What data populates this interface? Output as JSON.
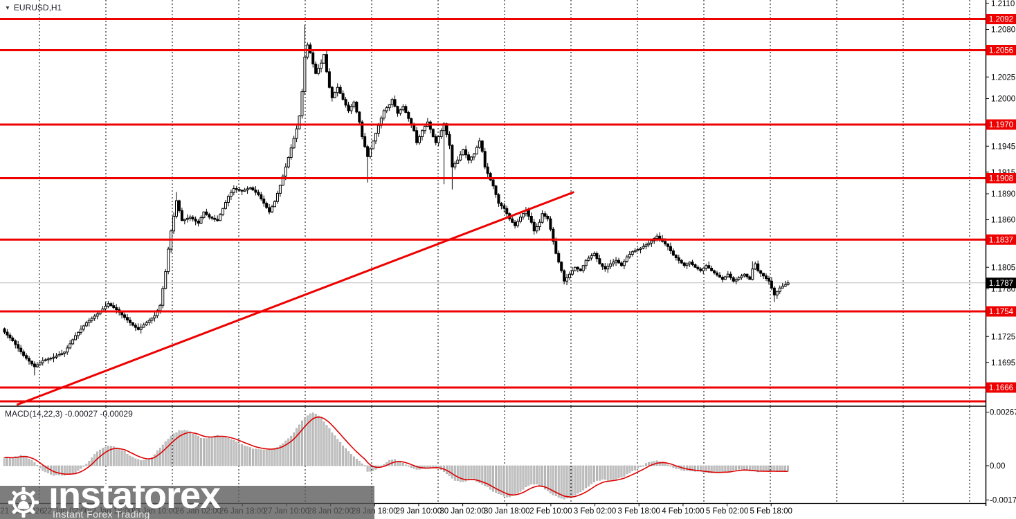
{
  "window": {
    "symbol_label": "EURUSD,H1"
  },
  "indicator_label": "MACD(14,22,3) -0.00027 -0.00029",
  "watermark": {
    "brand": "instaforex",
    "tagline": "Instant Forex Trading"
  },
  "colors": {
    "level_red": "#ee0000",
    "tag_red_bg": "#ee0000",
    "tag_text": "#ffffff",
    "current_tag_bg": "#000000",
    "signal_red": "#dd0000",
    "histogram_fill": "#c3c3c3",
    "histogram_edge": "#9d9d9d",
    "current_price_line": "#bbbbbb",
    "grid": "#000000",
    "candle_up_fill": "#ffffff",
    "candle_down_fill": "#000000",
    "candle_stroke": "#000000",
    "watermark_bg": "rgba(88,88,88,0.78)"
  },
  "price_axis": {
    "plain_ticks": [
      {
        "value": 1.211,
        "label": "1.2110"
      },
      {
        "value": 1.208,
        "label": "1.2080"
      },
      {
        "value": 1.2025,
        "label": "1.2025"
      },
      {
        "value": 1.2,
        "label": "1.2000"
      },
      {
        "value": 1.1945,
        "label": "1.1945"
      },
      {
        "value": 1.1915,
        "label": "1.1915"
      },
      {
        "value": 1.189,
        "label": "1.1890"
      },
      {
        "value": 1.186,
        "label": "1.1860"
      },
      {
        "value": 1.1805,
        "label": "1.1805"
      },
      {
        "value": 1.178,
        "label": "1.1780"
      },
      {
        "value": 1.1725,
        "label": "1.1725"
      },
      {
        "value": 1.1695,
        "label": "1.1695"
      }
    ],
    "current_tag": {
      "value": 1.1787,
      "label": "1.1787"
    }
  },
  "macd_axis": {
    "ticks": [
      {
        "value": 0.00267,
        "label": "0.00267"
      },
      {
        "value": 0,
        "label": "0.00"
      },
      {
        "value": -0.00171,
        "label": "-0.00171"
      }
    ]
  },
  "time_axis": {
    "labels": [
      "21 Jan 2026",
      "22 Jan 02:00",
      "22 Jan 18:00",
      "23 Jan 10:00",
      "26 Jan 02:00",
      "26 Jan 18:00",
      "27 Jan 10:00",
      "28 Jan 02:00",
      "28 Jan 18:00",
      "29 Jan 10:00",
      "30 Jan 02:00",
      "30 Jan 18:00",
      "2 Feb 10:00",
      "3 Feb 02:00",
      "3 Feb 18:00",
      "4 Feb 10:00",
      "5 Feb 02:00",
      "5 Feb 18:00"
    ]
  },
  "chart_data": {
    "type": "candlestick",
    "symbol": "EURUSD",
    "timeframe": "H1",
    "bars": 288,
    "price_levels": [
      {
        "price": 1.2092,
        "label": "1.2092"
      },
      {
        "price": 1.2056,
        "label": "1.2056"
      },
      {
        "price": 1.197,
        "label": "1.1970"
      },
      {
        "price": 1.1908,
        "label": "1.1908"
      },
      {
        "price": 1.1837,
        "label": "1.1837"
      },
      {
        "price": 1.1754,
        "label": "1.1754"
      },
      {
        "price": 1.1666,
        "label": "1.1666"
      },
      {
        "price": 1.165,
        "label": ""
      }
    ],
    "current_price": 1.1787,
    "trendline": {
      "start_index": 4.5,
      "start_price": 1.1646,
      "end_index": 208.6,
      "end_price": 1.1892
    },
    "candle_close_anchors": [
      [
        0,
        1.173
      ],
      [
        3,
        1.172
      ],
      [
        7,
        1.1703
      ],
      [
        11,
        1.169
      ],
      [
        14,
        1.1697
      ],
      [
        18,
        1.1701
      ],
      [
        22,
        1.1707
      ],
      [
        26,
        1.1726
      ],
      [
        30,
        1.1741
      ],
      [
        34,
        1.1751
      ],
      [
        38,
        1.1763
      ],
      [
        41,
        1.1756
      ],
      [
        44,
        1.1747
      ],
      [
        47,
        1.1738
      ],
      [
        49,
        1.1733
      ],
      [
        52,
        1.1741
      ],
      [
        55,
        1.1749
      ],
      [
        57,
        1.1761
      ],
      [
        59,
        1.18
      ],
      [
        60,
        1.1826
      ],
      [
        61,
        1.1847
      ],
      [
        62,
        1.1864
      ],
      [
        63,
        1.1882
      ],
      [
        65,
        1.1859
      ],
      [
        68,
        1.1863
      ],
      [
        71,
        1.1856
      ],
      [
        73,
        1.1869
      ],
      [
        75,
        1.1863
      ],
      [
        78,
        1.1859
      ],
      [
        80,
        1.1873
      ],
      [
        82,
        1.1887
      ],
      [
        84,
        1.1896
      ],
      [
        87,
        1.1893
      ],
      [
        90,
        1.1897
      ],
      [
        93,
        1.1889
      ],
      [
        95,
        1.1879
      ],
      [
        97,
        1.1869
      ],
      [
        99,
        1.1881
      ],
      [
        101,
        1.19
      ],
      [
        103,
        1.1921
      ],
      [
        105,
        1.1943
      ],
      [
        107,
        1.1965
      ],
      [
        108,
        1.198
      ],
      [
        109,
        1.2008
      ],
      [
        110,
        1.2048
      ],
      [
        111,
        1.2062
      ],
      [
        112,
        1.2053
      ],
      [
        113,
        1.204
      ],
      [
        114,
        1.2029
      ],
      [
        116,
        1.2041
      ],
      [
        117,
        1.2051
      ],
      [
        118,
        1.2031
      ],
      [
        119,
        1.2013
      ],
      [
        120,
        1.2001
      ],
      [
        122,
        1.2013
      ],
      [
        124,
        1.1999
      ],
      [
        126,
        1.1986
      ],
      [
        128,
        1.1996
      ],
      [
        130,
        1.1973
      ],
      [
        131,
        1.1956
      ],
      [
        133,
        1.1933
      ],
      [
        135,
        1.1951
      ],
      [
        137,
        1.1969
      ],
      [
        139,
        1.1986
      ],
      [
        141,
        1.1993
      ],
      [
        142,
        1.1999
      ],
      [
        144,
        1.1983
      ],
      [
        146,
        1.1991
      ],
      [
        148,
        1.1977
      ],
      [
        150,
        1.1963
      ],
      [
        151,
        1.1949
      ],
      [
        153,
        1.1963
      ],
      [
        155,
        1.1973
      ],
      [
        157,
        1.1956
      ],
      [
        158,
        1.1949
      ],
      [
        160,
        1.1963
      ],
      [
        161,
        1.1971
      ],
      [
        163,
        1.1946
      ],
      [
        164,
        1.1921
      ],
      [
        166,
        1.1929
      ],
      [
        168,
        1.1941
      ],
      [
        170,
        1.1929
      ],
      [
        172,
        1.1936
      ],
      [
        174,
        1.1951
      ],
      [
        175,
        1.1939
      ],
      [
        176,
        1.1921
      ],
      [
        178,
        1.1906
      ],
      [
        179,
        1.1899
      ],
      [
        181,
        1.1879
      ],
      [
        183,
        1.1873
      ],
      [
        185,
        1.1861
      ],
      [
        187,
        1.1853
      ],
      [
        189,
        1.1863
      ],
      [
        191,
        1.1871
      ],
      [
        193,
        1.1857
      ],
      [
        194,
        1.1847
      ],
      [
        196,
        1.1857
      ],
      [
        197,
        1.1867
      ],
      [
        199,
        1.1861
      ],
      [
        200,
        1.1849
      ],
      [
        202,
        1.1821
      ],
      [
        204,
        1.1801
      ],
      [
        205,
        1.1789
      ],
      [
        207,
        1.1797
      ],
      [
        209,
        1.1805
      ],
      [
        211,
        1.1801
      ],
      [
        213,
        1.1813
      ],
      [
        216,
        1.1821
      ],
      [
        218,
        1.1809
      ],
      [
        220,
        1.1803
      ],
      [
        222,
        1.1809
      ],
      [
        224,
        1.1813
      ],
      [
        226,
        1.1807
      ],
      [
        228,
        1.1817
      ],
      [
        230,
        1.1823
      ],
      [
        233,
        1.1827
      ],
      [
        236,
        1.1833
      ],
      [
        239,
        1.1841
      ],
      [
        241,
        1.1835
      ],
      [
        243,
        1.1829
      ],
      [
        245,
        1.1819
      ],
      [
        247,
        1.1813
      ],
      [
        249,
        1.1807
      ],
      [
        251,
        1.1811
      ],
      [
        253,
        1.1805
      ],
      [
        255,
        1.1801
      ],
      [
        257,
        1.1807
      ],
      [
        259,
        1.1801
      ],
      [
        261,
        1.1796
      ],
      [
        263,
        1.1791
      ],
      [
        265,
        1.1797
      ],
      [
        267,
        1.1789
      ],
      [
        269,
        1.1793
      ],
      [
        271,
        1.1797
      ],
      [
        273,
        1.1791
      ],
      [
        274,
        1.1803
      ],
      [
        275,
        1.1809
      ],
      [
        276,
        1.1801
      ],
      [
        278,
        1.1795
      ],
      [
        280,
        1.1789
      ],
      [
        281,
        1.1781
      ],
      [
        282,
        1.1773
      ],
      [
        284,
        1.1781
      ],
      [
        286,
        1.1785
      ],
      [
        287,
        1.1787
      ]
    ],
    "wick_extremes": [
      {
        "i": 11,
        "low": 1.168
      },
      {
        "i": 38,
        "high": 1.1766
      },
      {
        "i": 63,
        "high": 1.1892
      },
      {
        "i": 110,
        "high": 1.2085
      },
      {
        "i": 133,
        "low": 1.1903
      },
      {
        "i": 142,
        "high": 1.2001
      },
      {
        "i": 161,
        "low": 1.1901
      },
      {
        "i": 164,
        "low": 1.1895
      },
      {
        "i": 239,
        "high": 1.1843
      },
      {
        "i": 274,
        "high": 1.1812
      },
      {
        "i": 282,
        "low": 1.1765
      }
    ],
    "macd": {
      "params": "14,22,3",
      "last_main": -0.00027,
      "last_signal": -0.00029,
      "value_anchors": [
        [
          0,
          0.00042
        ],
        [
          3,
          0.0004
        ],
        [
          6,
          0.0005
        ],
        [
          8,
          0.00045
        ],
        [
          10,
          0.00025
        ],
        [
          12,
          2e-05
        ],
        [
          14,
          -0.00025
        ],
        [
          17,
          -0.00045
        ],
        [
          20,
          -0.00048
        ],
        [
          23,
          -0.00045
        ],
        [
          26,
          -0.00036
        ],
        [
          28,
          -0.00015
        ],
        [
          30,
          0.0001
        ],
        [
          32,
          0.0004
        ],
        [
          34,
          0.0007
        ],
        [
          36,
          0.0009
        ],
        [
          38,
          0.00098
        ],
        [
          40,
          0.00096
        ],
        [
          42,
          0.00085
        ],
        [
          44,
          0.0007
        ],
        [
          46,
          0.0005
        ],
        [
          48,
          0.00035
        ],
        [
          50,
          0.00028
        ],
        [
          52,
          0.00026
        ],
        [
          54,
          0.00042
        ],
        [
          56,
          0.00072
        ],
        [
          58,
          0.00105
        ],
        [
          60,
          0.00135
        ],
        [
          62,
          0.0016
        ],
        [
          64,
          0.00174
        ],
        [
          66,
          0.00177
        ],
        [
          68,
          0.00168
        ],
        [
          70,
          0.00152
        ],
        [
          72,
          0.00139
        ],
        [
          74,
          0.00136
        ],
        [
          76,
          0.00144
        ],
        [
          78,
          0.00149
        ],
        [
          80,
          0.00147
        ],
        [
          82,
          0.00138
        ],
        [
          84,
          0.00125
        ],
        [
          86,
          0.00111
        ],
        [
          88,
          0.00099
        ],
        [
          90,
          0.0009
        ],
        [
          92,
          0.00082
        ],
        [
          94,
          0.00078
        ],
        [
          96,
          0.00077
        ],
        [
          98,
          0.00081
        ],
        [
          100,
          0.00092
        ],
        [
          102,
          0.0011
        ],
        [
          104,
          0.00134
        ],
        [
          106,
          0.00166
        ],
        [
          108,
          0.00203
        ],
        [
          110,
          0.00241
        ],
        [
          112,
          0.00261
        ],
        [
          113,
          0.00266
        ],
        [
          114,
          0.00259
        ],
        [
          116,
          0.00237
        ],
        [
          118,
          0.00202
        ],
        [
          120,
          0.00166
        ],
        [
          122,
          0.0013
        ],
        [
          124,
          0.00098
        ],
        [
          126,
          0.0007
        ],
        [
          128,
          0.00045
        ],
        [
          130,
          0.00022
        ],
        [
          132,
          1e-05
        ],
        [
          133,
          -0.00028
        ],
        [
          135,
          -0.00026
        ],
        [
          137,
          -0.00012
        ],
        [
          139,
          8e-05
        ],
        [
          141,
          0.00024
        ],
        [
          143,
          0.0003
        ],
        [
          145,
          0.00021
        ],
        [
          147,
          6e-05
        ],
        [
          149,
          -8e-05
        ],
        [
          151,
          -0.00017
        ],
        [
          153,
          -0.00015
        ],
        [
          155,
          -0.00012
        ],
        [
          157,
          -6e-05
        ],
        [
          159,
          -0.00012
        ],
        [
          161,
          -0.00028
        ],
        [
          163,
          -0.00052
        ],
        [
          165,
          -0.00072
        ],
        [
          167,
          -0.0008
        ],
        [
          169,
          -0.00077
        ],
        [
          171,
          -0.00063
        ],
        [
          173,
          -0.00077
        ],
        [
          175,
          -0.00092
        ],
        [
          177,
          -0.00107
        ],
        [
          179,
          -0.00126
        ],
        [
          181,
          -0.00141
        ],
        [
          183,
          -0.00152
        ],
        [
          185,
          -0.00156
        ],
        [
          187,
          -0.00146
        ],
        [
          189,
          -0.00127
        ],
        [
          191,
          -0.00107
        ],
        [
          193,
          -0.00093
        ],
        [
          195,
          -0.0009
        ],
        [
          197,
          -0.00106
        ],
        [
          199,
          -0.00126
        ],
        [
          201,
          -0.00146
        ],
        [
          203,
          -0.00159
        ],
        [
          205,
          -0.00166
        ],
        [
          207,
          -0.00161
        ],
        [
          209,
          -0.00149
        ],
        [
          211,
          -0.00131
        ],
        [
          213,
          -0.00109
        ],
        [
          215,
          -0.00091
        ],
        [
          217,
          -0.00076
        ],
        [
          219,
          -0.00069
        ],
        [
          221,
          -0.00071
        ],
        [
          223,
          -0.00069
        ],
        [
          225,
          -0.00061
        ],
        [
          227,
          -0.00051
        ],
        [
          229,
          -0.00036
        ],
        [
          231,
          -0.00021
        ],
        [
          233,
          -6e-05
        ],
        [
          235,
          0.0001
        ],
        [
          237,
          0.00022
        ],
        [
          239,
          0.00025
        ],
        [
          241,
          0.00018
        ],
        [
          243,
          5e-05
        ],
        [
          245,
          -8e-05
        ],
        [
          247,
          -0.00018
        ],
        [
          249,
          -0.00023
        ],
        [
          251,
          -0.00026
        ],
        [
          253,
          -0.00028
        ],
        [
          255,
          -0.0003
        ],
        [
          257,
          -0.00032
        ],
        [
          259,
          -0.00035
        ],
        [
          262,
          -0.00034
        ],
        [
          265,
          -0.00029
        ],
        [
          267,
          -0.00023
        ],
        [
          269,
          -0.00019
        ],
        [
          271,
          -0.00021
        ],
        [
          273,
          -0.00026
        ],
        [
          275,
          -0.0003
        ],
        [
          277,
          -0.0003
        ],
        [
          279,
          -0.00028
        ],
        [
          281,
          -0.00027
        ],
        [
          283,
          -0.00028
        ],
        [
          285,
          -0.00029
        ],
        [
          287,
          -0.00029
        ]
      ]
    }
  }
}
